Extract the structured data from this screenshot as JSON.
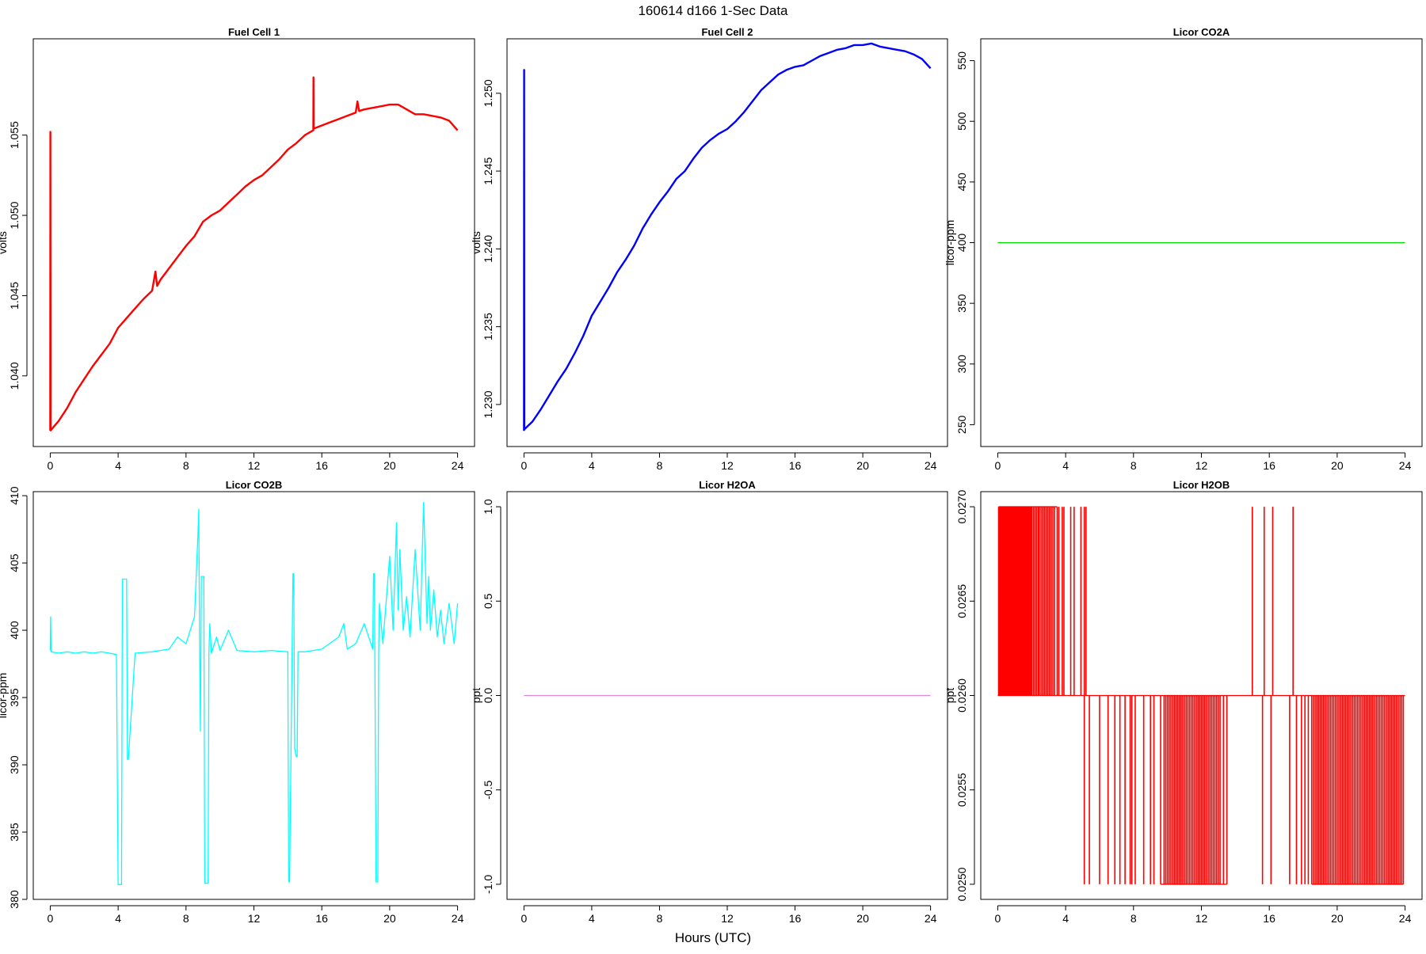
{
  "title": "160614   d166   1-Sec Data",
  "xlabel": "Hours (UTC)",
  "chart_data": [
    {
      "type": "line",
      "title": "Fuel Cell 1",
      "ylabel": "volts",
      "color": "#ff0000",
      "xlim": [
        -1,
        25
      ],
      "ylim": [
        1.0356,
        1.061
      ],
      "xticks": [
        0,
        4,
        8,
        12,
        16,
        20,
        24
      ],
      "yticks": [
        1.04,
        1.045,
        1.05,
        1.055
      ],
      "ytick_labels": [
        "1.040",
        "1.045",
        "1.050",
        "1.055"
      ],
      "series": [
        {
          "x": [
            0,
            0.01,
            0.02,
            0.5,
            1,
            1.5,
            2,
            2.5,
            3,
            3.5,
            4,
            4.5,
            5,
            5.5,
            6,
            6.2,
            6.3,
            6.5,
            7,
            7.5,
            8,
            8.5,
            9,
            9.5,
            10,
            10.5,
            11,
            11.5,
            12,
            12.5,
            13,
            13.5,
            14,
            14.5,
            15,
            15.5,
            15.51,
            15.52,
            16,
            16.5,
            17,
            17.5,
            18,
            18.1,
            18.2,
            18.5,
            19,
            19.5,
            20,
            20.5,
            21,
            21.5,
            22,
            22.5,
            23,
            23.5,
            24
          ],
          "values": [
            1.0366,
            1.0552,
            1.0366,
            1.0372,
            1.038,
            1.039,
            1.0398,
            1.0406,
            1.0413,
            1.042,
            1.043,
            1.0436,
            1.0442,
            1.0448,
            1.0453,
            1.0465,
            1.0456,
            1.046,
            1.0467,
            1.0474,
            1.0481,
            1.0487,
            1.0496,
            1.05,
            1.0503,
            1.0508,
            1.0513,
            1.0518,
            1.0522,
            1.0525,
            1.053,
            1.0535,
            1.0541,
            1.0545,
            1.055,
            1.0553,
            1.0586,
            1.0554,
            1.0556,
            1.0558,
            1.056,
            1.0562,
            1.0564,
            1.0571,
            1.0565,
            1.0566,
            1.0567,
            1.0568,
            1.0569,
            1.0569,
            1.0566,
            1.0563,
            1.0563,
            1.0562,
            1.0561,
            1.0559,
            1.0553
          ]
        }
      ]
    },
    {
      "type": "line",
      "title": "Fuel Cell 2",
      "ylabel": "volts",
      "color": "#0000ff",
      "xlim": [
        -1,
        25
      ],
      "ylim": [
        1.2273,
        1.2535
      ],
      "xticks": [
        0,
        4,
        8,
        12,
        16,
        20,
        24
      ],
      "yticks": [
        1.23,
        1.235,
        1.24,
        1.245,
        1.25
      ],
      "ytick_labels": [
        "1.230",
        "1.235",
        "1.240",
        "1.245",
        "1.250"
      ],
      "series": [
        {
          "x": [
            0,
            0.01,
            0.02,
            0.5,
            1,
            1.5,
            2,
            2.5,
            3,
            3.5,
            4,
            4.5,
            5,
            5.5,
            6,
            6.5,
            7,
            7.5,
            8,
            8.5,
            9,
            9.5,
            10,
            10.5,
            11,
            11.5,
            12,
            12.5,
            13,
            13.5,
            14,
            14.5,
            15,
            15.5,
            16,
            16.5,
            17,
            17.5,
            18,
            18.5,
            19,
            19.5,
            20,
            20.5,
            21,
            21.5,
            22,
            22.5,
            23,
            23.5,
            24
          ],
          "values": [
            1.2283,
            1.2515,
            1.2284,
            1.2289,
            1.2297,
            1.2306,
            1.2315,
            1.2323,
            1.2333,
            1.2344,
            1.2357,
            1.2366,
            1.2375,
            1.2385,
            1.2393,
            1.2402,
            1.2413,
            1.2422,
            1.243,
            1.2437,
            1.2445,
            1.245,
            1.2458,
            1.2465,
            1.247,
            1.2474,
            1.2477,
            1.2482,
            1.2488,
            1.2495,
            1.2502,
            1.2507,
            1.2512,
            1.2515,
            1.2517,
            1.2518,
            1.2521,
            1.2524,
            1.2526,
            1.2528,
            1.2529,
            1.2531,
            1.2531,
            1.2532,
            1.253,
            1.2529,
            1.2528,
            1.2527,
            1.2525,
            1.2522,
            1.2516
          ]
        }
      ]
    },
    {
      "type": "line",
      "title": "Licor CO2A",
      "ylabel": "licor-ppm",
      "color": "#00dd00",
      "xlim": [
        -1,
        25
      ],
      "ylim": [
        232,
        568
      ],
      "xticks": [
        0,
        4,
        8,
        12,
        16,
        20,
        24
      ],
      "yticks": [
        250,
        300,
        350,
        400,
        450,
        500,
        550
      ],
      "ytick_labels": [
        "250",
        "300",
        "350",
        "400",
        "450",
        "500",
        "550"
      ],
      "series": [
        {
          "x": [
            0,
            24
          ],
          "values": [
            400,
            400
          ]
        }
      ]
    },
    {
      "type": "line",
      "title": "Licor CO2B",
      "ylabel": "licor-ppm",
      "color": "#00ffff",
      "xlim": [
        -1,
        25
      ],
      "ylim": [
        380,
        410.3
      ],
      "xticks": [
        0,
        4,
        8,
        12,
        16,
        20,
        24
      ],
      "yticks": [
        380,
        385,
        390,
        395,
        400,
        405,
        410
      ],
      "ytick_labels": [
        "380",
        "385",
        "390",
        "395",
        "400",
        "405",
        "410"
      ],
      "series": [
        {
          "x": [
            0,
            0.02,
            0.05,
            0.5,
            1,
            1.5,
            2,
            2.5,
            3,
            3.5,
            3.9,
            4.0,
            4.05,
            4.2,
            4.25,
            4.3,
            4.5,
            4.55,
            4.6,
            5,
            6,
            7,
            7.5,
            8,
            8.5,
            8.7,
            8.75,
            8.8,
            8.85,
            8.9,
            9.0,
            9.05,
            9.1,
            9.2,
            9.3,
            9.35,
            9.4,
            9.5,
            9.8,
            10.0,
            10.5,
            11,
            12,
            13,
            14,
            14.05,
            14.1,
            14.3,
            14.35,
            14.4,
            14.5,
            14.55,
            14.6,
            15,
            16,
            17,
            17.3,
            17.5,
            18,
            18.5,
            19,
            19.05,
            19.1,
            19.2,
            19.3,
            19.35,
            19.4,
            19.6,
            20,
            20.2,
            20.4,
            20.5,
            20.6,
            20.8,
            21,
            21.2,
            21.5,
            21.8,
            22,
            22.2,
            22.3,
            22.4,
            22.6,
            22.8,
            23,
            23.2,
            23.5,
            23.8,
            24
          ],
          "values": [
            398.5,
            401.0,
            398.4,
            398.3,
            398.4,
            398.3,
            398.4,
            398.3,
            398.4,
            398.3,
            398.2,
            381.1,
            381.1,
            381.1,
            403.8,
            403.8,
            403.8,
            390.4,
            390.4,
            398.3,
            398.4,
            398.6,
            399.5,
            399.0,
            401.0,
            407.0,
            409.0,
            399.0,
            392.5,
            404.0,
            404.0,
            404.0,
            381.2,
            381.2,
            381.2,
            398.3,
            400.5,
            398.3,
            399.5,
            398.5,
            400.0,
            398.5,
            398.4,
            398.5,
            398.4,
            381.3,
            381.3,
            404.2,
            404.2,
            391.2,
            390.6,
            390.6,
            398.4,
            398.4,
            398.6,
            399.5,
            400.5,
            398.6,
            399.0,
            400.5,
            398.6,
            404.2,
            404.2,
            381.3,
            381.3,
            398.5,
            402.0,
            399.0,
            405.5,
            400.0,
            408.0,
            401.5,
            406.0,
            400.0,
            402.5,
            399.5,
            406.0,
            400.0,
            409.5,
            400.5,
            404.0,
            400.0,
            403.0,
            399.5,
            401.5,
            399.0,
            402.0,
            399.0,
            402.0
          ]
        }
      ]
    },
    {
      "type": "line",
      "title": "Licor H2OA",
      "ylabel": "ppt",
      "color": "#dd88dd",
      "xlim": [
        -1,
        25
      ],
      "ylim": [
        -1.08,
        1.08
      ],
      "xticks": [
        0,
        4,
        8,
        12,
        16,
        20,
        24
      ],
      "yticks": [
        -1.0,
        -0.5,
        0.0,
        0.5,
        1.0
      ],
      "ytick_labels": [
        "-1.0",
        "-0.5",
        "0.0",
        "0.5",
        "1.0"
      ],
      "series": [
        {
          "x": [
            0,
            24
          ],
          "values": [
            0,
            0
          ]
        }
      ]
    },
    {
      "type": "line",
      "title": "Licor H2OB",
      "ylabel": "ppt",
      "color": "#ff0000",
      "xlim": [
        -1,
        25
      ],
      "ylim": [
        0.02492,
        0.02708
      ],
      "xticks": [
        0,
        4,
        8,
        12,
        16,
        20,
        24
      ],
      "yticks": [
        0.025,
        0.0255,
        0.026,
        0.0265,
        0.027
      ],
      "ytick_labels": [
        "0.0250",
        "0.0255",
        "0.0260",
        "0.0265",
        "0.0270"
      ],
      "baseline": 0.026,
      "high": 0.027,
      "low": 0.025,
      "up_spikes_x": [
        0.05,
        0.1,
        0.15,
        0.2,
        0.25,
        0.3,
        0.35,
        0.4,
        0.45,
        0.5,
        0.55,
        0.6,
        0.65,
        0.7,
        0.75,
        0.8,
        0.85,
        0.9,
        0.95,
        1.0,
        1.05,
        1.1,
        1.15,
        1.2,
        1.25,
        1.3,
        1.35,
        1.4,
        1.45,
        1.5,
        1.55,
        1.6,
        1.65,
        1.7,
        1.75,
        1.8,
        1.85,
        1.9,
        1.95,
        2.0,
        2.1,
        2.2,
        2.3,
        2.4,
        2.45,
        2.55,
        2.65,
        2.75,
        2.85,
        2.95,
        3.05,
        3.15,
        3.25,
        3.35,
        3.5,
        3.6,
        3.8,
        3.9,
        4.3,
        4.5,
        4.9,
        5.1,
        5.2,
        15.0,
        15.7,
        16.2,
        17.4
      ],
      "down_spikes_x": [
        5.1,
        5.4,
        6.0,
        6.5,
        6.9,
        7.2,
        7.5,
        7.8,
        7.9,
        8.1,
        8.6,
        9.0,
        9.2,
        9.6,
        9.8,
        9.9,
        10.0,
        10.1,
        10.2,
        10.3,
        10.4,
        10.5,
        10.6,
        10.7,
        10.8,
        10.9,
        11.0,
        11.1,
        11.2,
        11.3,
        11.4,
        11.5,
        11.6,
        11.7,
        11.8,
        11.9,
        12.0,
        12.1,
        12.2,
        12.3,
        12.4,
        12.5,
        12.6,
        12.7,
        12.8,
        12.9,
        13.0,
        13.1,
        13.3,
        13.5,
        15.6,
        16.1,
        17.2,
        17.6,
        17.9,
        18.1,
        18.3,
        18.5,
        18.6,
        18.7,
        18.8,
        18.9,
        19.0,
        19.1,
        19.2,
        19.3,
        19.4,
        19.5,
        19.6,
        19.7,
        19.8,
        19.9,
        20.0,
        20.1,
        20.2,
        20.3,
        20.4,
        20.5,
        20.6,
        20.7,
        20.8,
        20.9,
        21.0,
        21.1,
        21.2,
        21.3,
        21.4,
        21.5,
        21.6,
        21.7,
        21.8,
        21.9,
        22.0,
        22.1,
        22.2,
        22.3,
        22.4,
        22.5,
        22.6,
        22.7,
        22.8,
        22.9,
        23.0,
        23.1,
        23.2,
        23.3,
        23.4,
        23.5,
        23.6,
        23.7,
        23.8,
        23.9
      ]
    }
  ]
}
